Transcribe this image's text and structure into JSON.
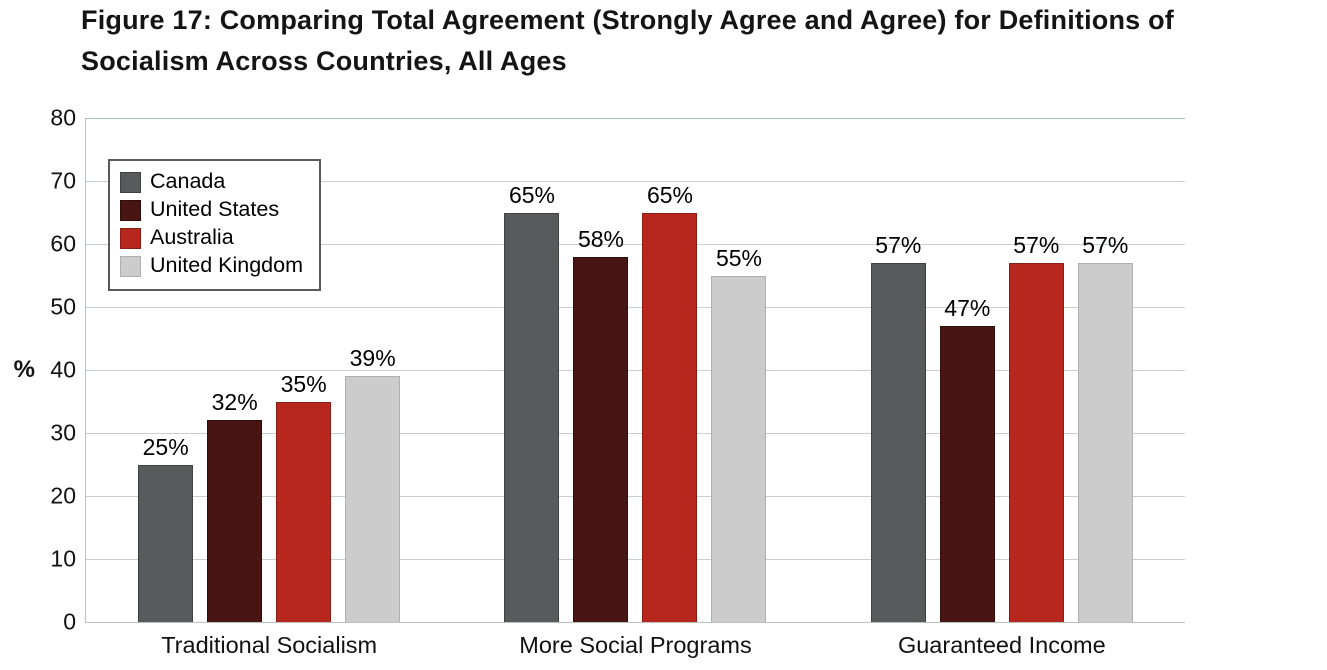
{
  "header": {
    "title_line1": "Figure 17: Comparing Total Agreement (Strongly Agree and Agree) for Definitions of",
    "title_line2": "Socialism Across Countries, All Ages"
  },
  "chart_data": {
    "type": "bar",
    "title": "Figure 17: Comparing Total Agreement (Strongly Agree and Agree) for Definitions of Socialism Across Countries, All Ages",
    "categories": [
      "Traditional Socialism",
      "More Social Programs",
      "Guaranteed Income"
    ],
    "series": [
      {
        "name": "Canada",
        "values": [
          25,
          65,
          57
        ],
        "labels": [
          "25%",
          "65%",
          "57%"
        ],
        "color": "#575B5B",
        "border_color": "#3E4242"
      },
      {
        "name": "United States",
        "values": [
          32,
          58,
          47
        ],
        "labels": [
          "32%",
          "58%",
          "47%"
        ],
        "color": "#481512",
        "border_color": "#2E0D0B"
      },
      {
        "name": "Australia",
        "values": [
          35,
          65,
          57
        ],
        "labels": [
          "35%",
          "65%",
          "57%"
        ],
        "color": "#B7271E",
        "border_color": "#8C1D16"
      },
      {
        "name": "United Kingdom",
        "values": [
          39,
          55,
          57
        ],
        "labels": [
          "39%",
          "55%",
          "57%"
        ],
        "color": "#CCCCCC",
        "border_color": "#AFAFAF"
      }
    ],
    "xlabel": "",
    "ylabel": "%",
    "ylim": [
      0,
      80
    ],
    "yticks": [
      "80",
      "70",
      "60",
      "50",
      "40",
      "30",
      "20",
      "10",
      "0"
    ],
    "grid": "horizontal",
    "legend_position": "top-left-inside"
  }
}
